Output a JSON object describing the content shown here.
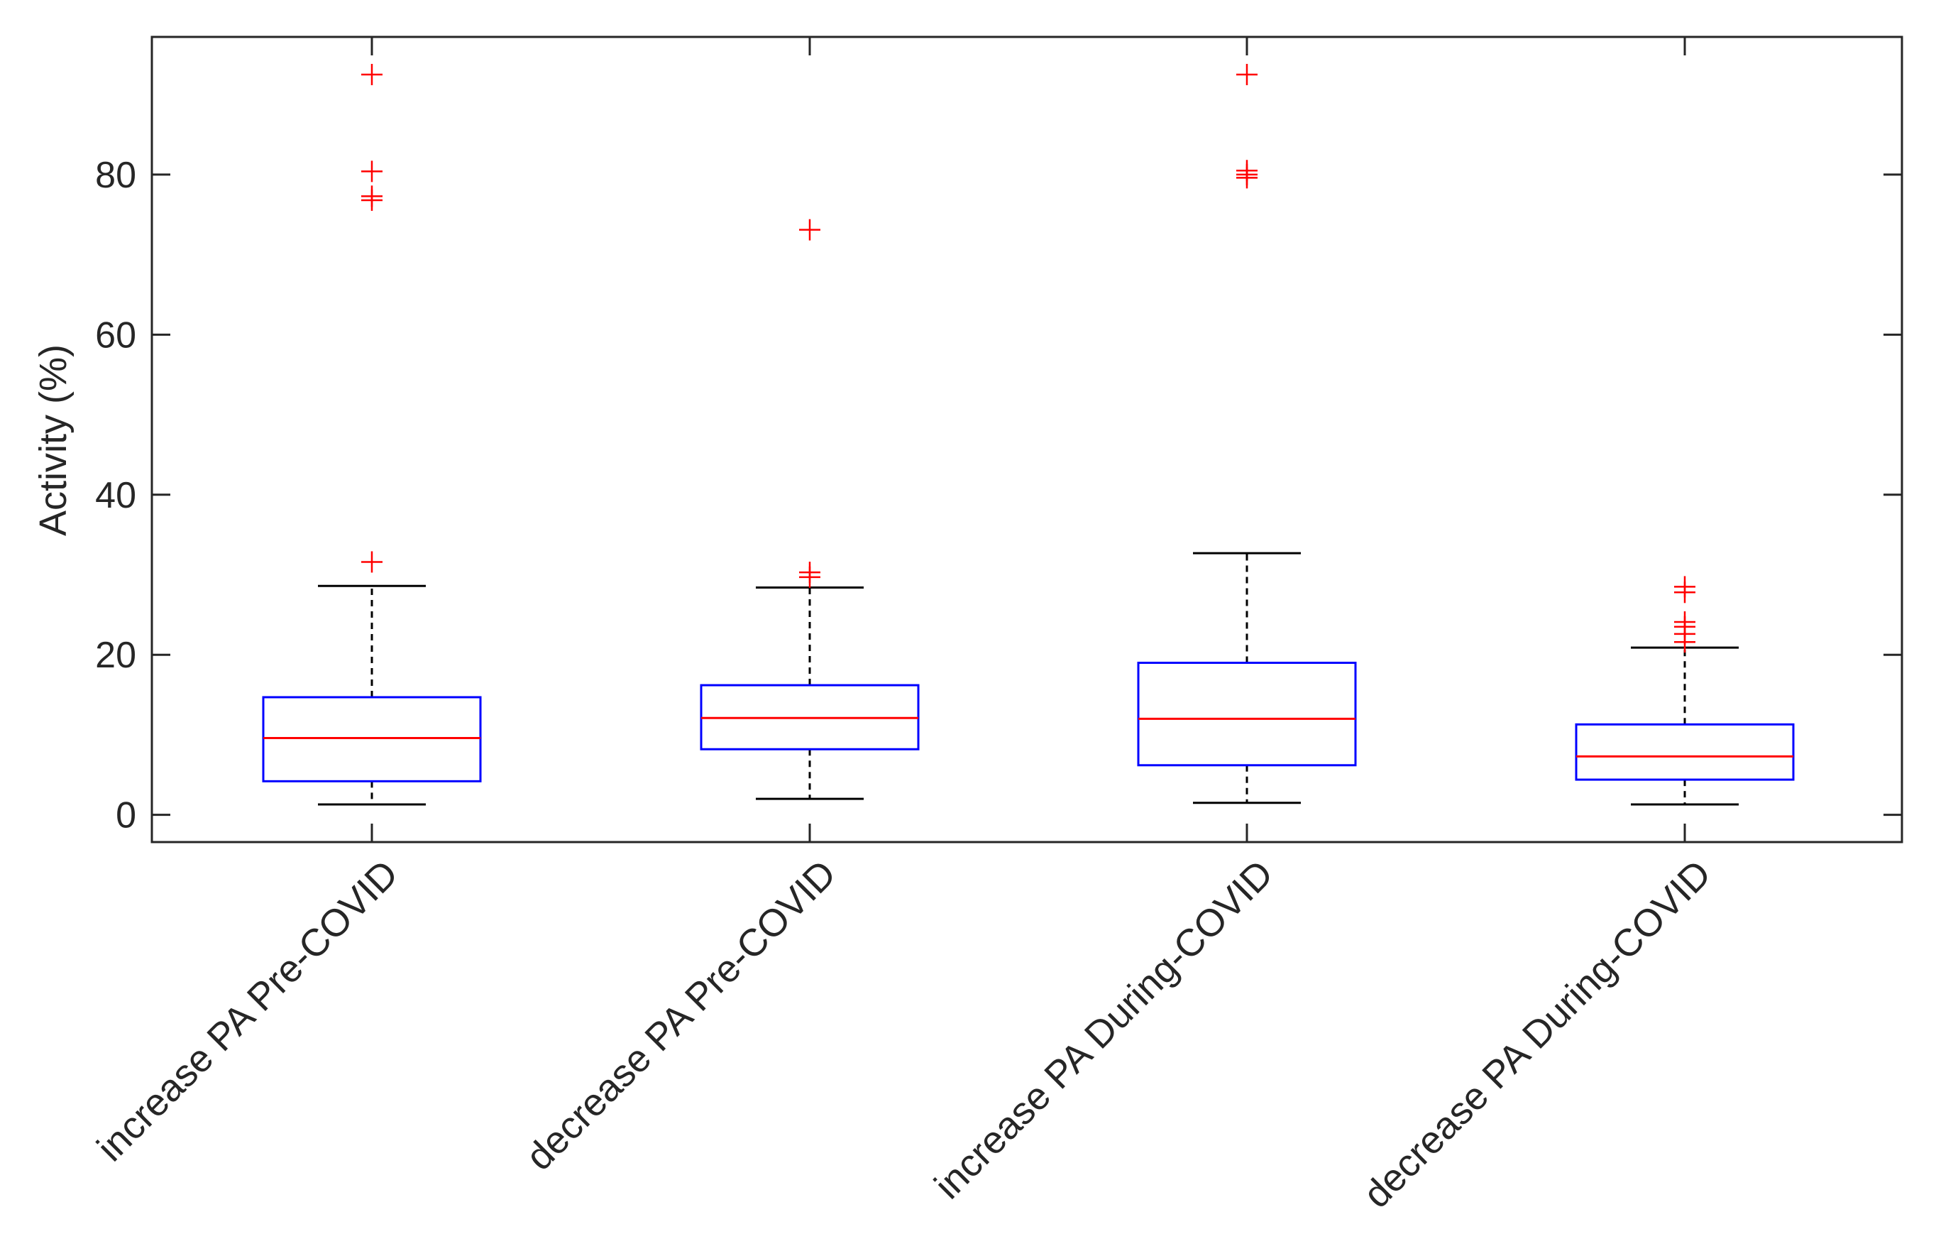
{
  "chart_data": {
    "type": "boxplot",
    "title": "",
    "xlabel": "",
    "ylabel": "Activity (%)",
    "ylim": [
      -3.4,
      97.2
    ],
    "yticks": [
      0,
      20,
      40,
      60,
      80
    ],
    "grid": false,
    "categories": [
      "increase PA Pre-COVID",
      "decrease PA Pre-COVID",
      "increase PA During-COVID",
      "decrease PA During-COVID"
    ],
    "boxes": [
      {
        "category": "increase PA Pre-COVID",
        "whisker_low": 1.3,
        "q1": 4.2,
        "median": 9.6,
        "q3": 14.7,
        "whisker_high": 28.6,
        "outliers": [
          31.6,
          76.8,
          77.3,
          80.4,
          92.5
        ]
      },
      {
        "category": "decrease PA Pre-COVID",
        "whisker_low": 2.0,
        "q1": 8.2,
        "median": 12.1,
        "q3": 16.2,
        "whisker_high": 28.4,
        "outliers": [
          29.7,
          30.3,
          73.1
        ]
      },
      {
        "category": "increase PA During-COVID",
        "whisker_low": 1.5,
        "q1": 6.2,
        "median": 12.0,
        "q3": 19.0,
        "whisker_high": 32.7,
        "outliers": [
          79.6,
          80.0,
          80.5,
          92.5
        ]
      },
      {
        "category": "decrease PA During-COVID",
        "whisker_low": 1.3,
        "q1": 4.4,
        "median": 7.3,
        "q3": 11.3,
        "whisker_high": 20.9,
        "outliers": [
          21.6,
          22.6,
          23.5,
          24.1,
          27.8,
          28.5
        ]
      }
    ],
    "colors": {
      "box": "#0000ff",
      "median": "#ff0000",
      "outlier": "#ff0000",
      "whisker": "#000000",
      "axis": "#262626"
    }
  }
}
